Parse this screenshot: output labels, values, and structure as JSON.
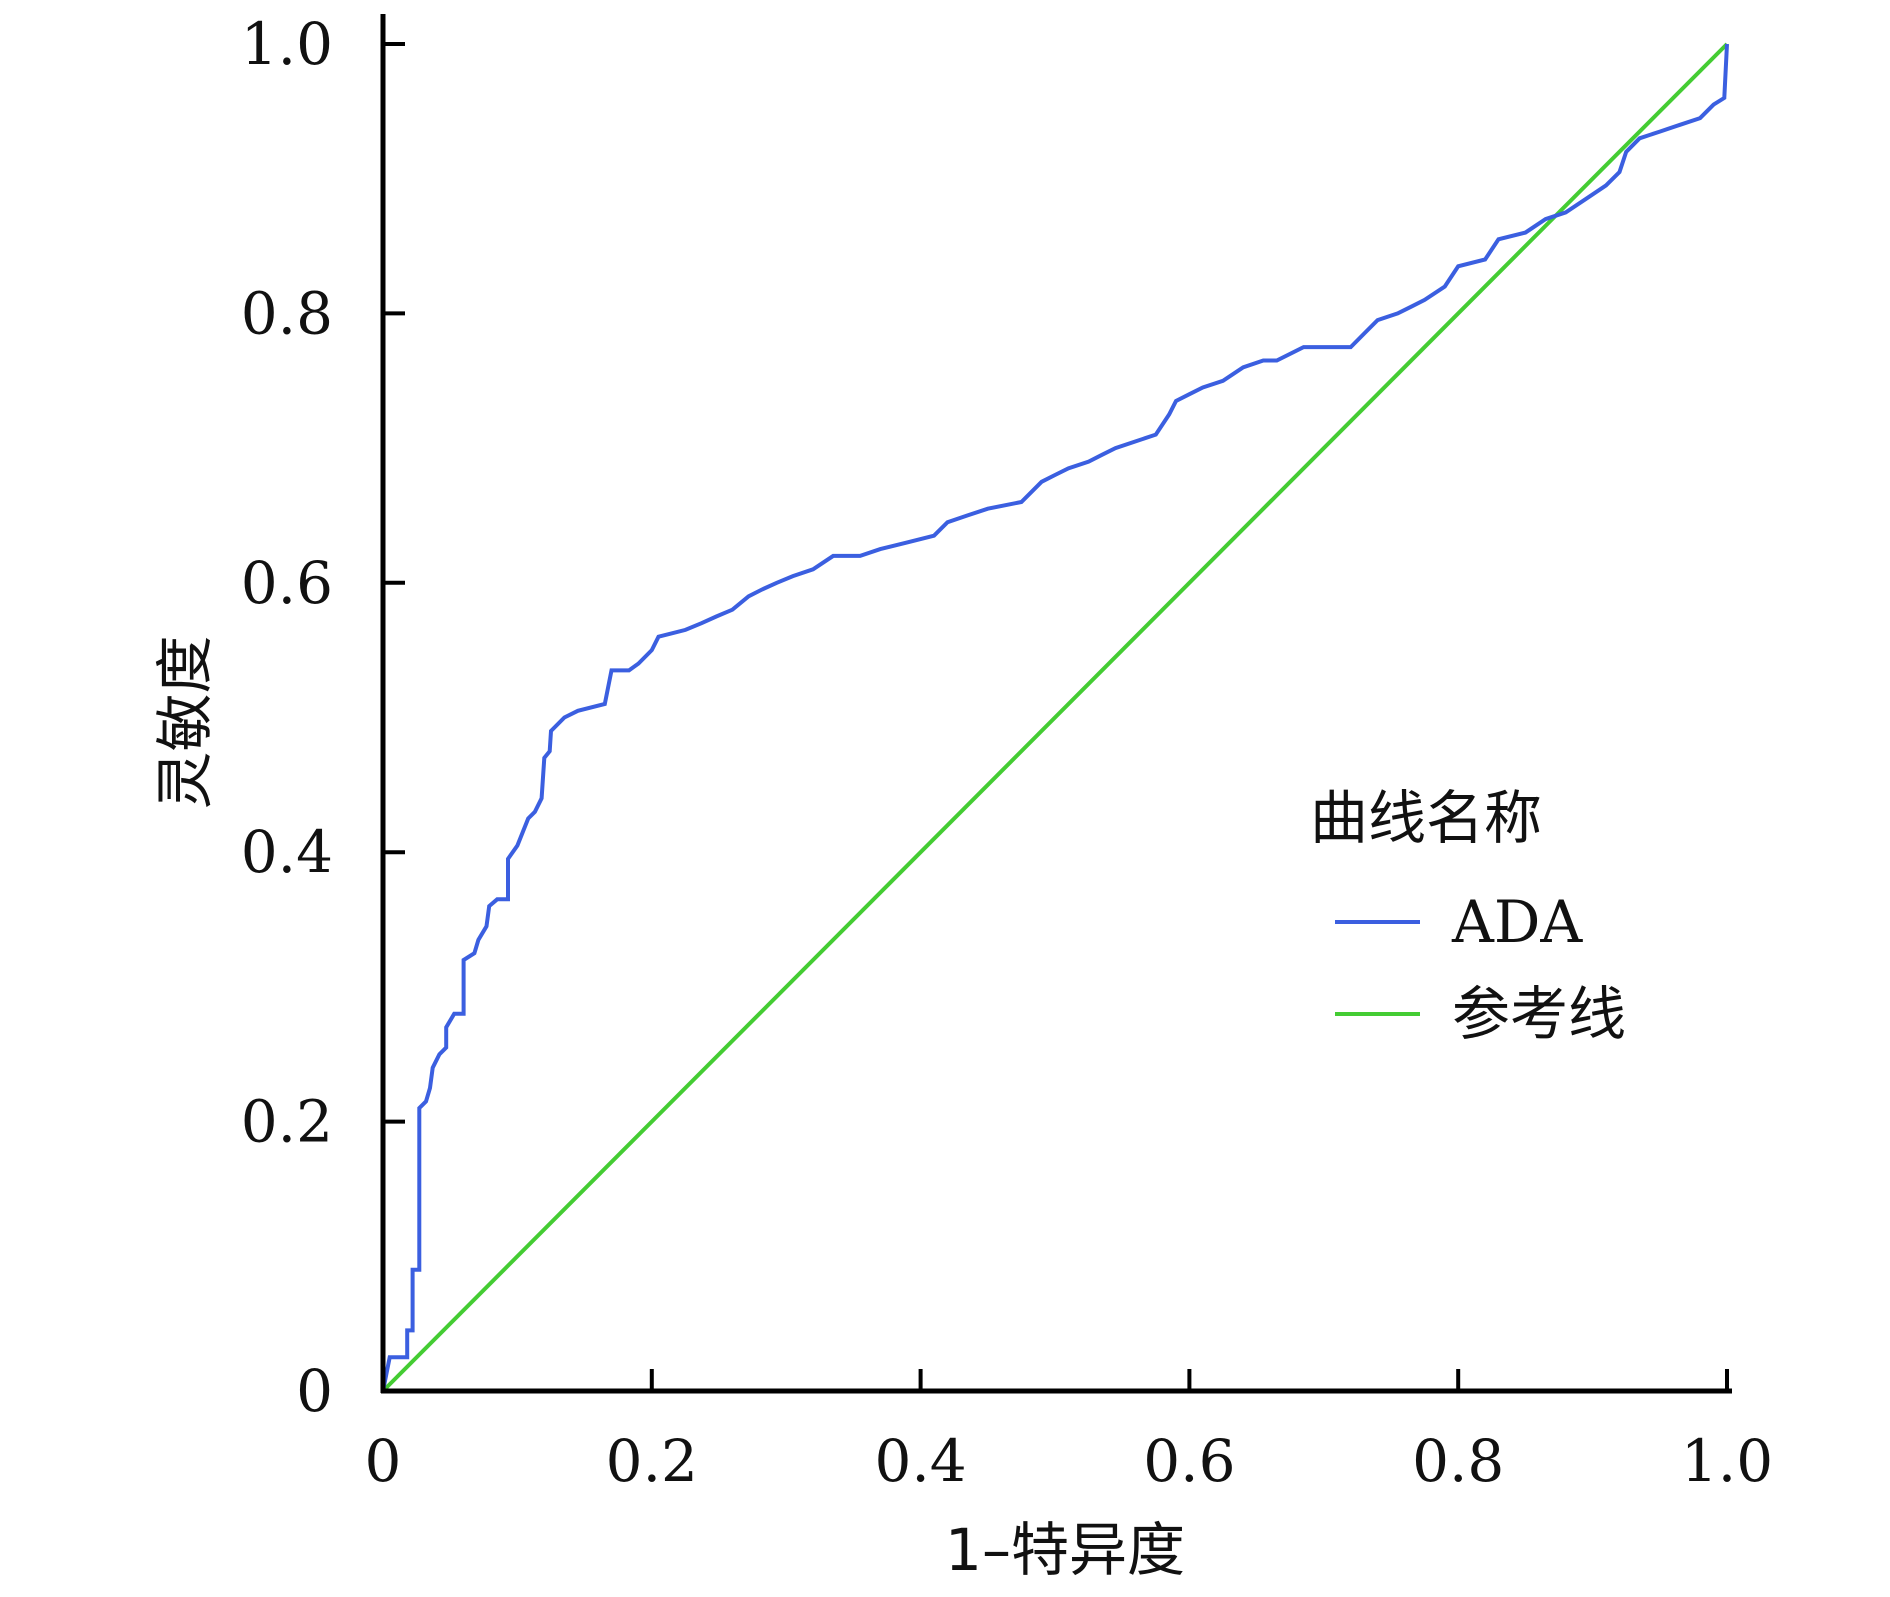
{
  "chart_data": {
    "type": "line",
    "xlabel": "1–特异度",
    "ylabel": "灵敏度",
    "xlim": [
      0,
      1
    ],
    "ylim": [
      0,
      1
    ],
    "x_ticks": [
      "0",
      "0.2",
      "0.4",
      "0.6",
      "0.8",
      "1.0"
    ],
    "y_ticks": [
      "0",
      "0.2",
      "0.4",
      "0.6",
      "0.8",
      "1.0"
    ],
    "grid": false,
    "legend": {
      "title": "曲线名称",
      "placement": "right",
      "entries": [
        {
          "label": "ADA",
          "color": "#3b5fe0"
        },
        {
          "label": "参考线",
          "color": "#44cc33"
        }
      ]
    },
    "series": [
      {
        "name": "ADA",
        "color": "#3b5fe0",
        "points": [
          [
            0,
            0
          ],
          [
            0.003,
            0.015
          ],
          [
            0.005,
            0.025
          ],
          [
            0.018,
            0.025
          ],
          [
            0.018,
            0.045
          ],
          [
            0.022,
            0.045
          ],
          [
            0.022,
            0.09
          ],
          [
            0.027,
            0.09
          ],
          [
            0.027,
            0.21
          ],
          [
            0.032,
            0.215
          ],
          [
            0.035,
            0.225
          ],
          [
            0.037,
            0.24
          ],
          [
            0.042,
            0.25
          ],
          [
            0.047,
            0.255
          ],
          [
            0.047,
            0.27
          ],
          [
            0.053,
            0.28
          ],
          [
            0.06,
            0.28
          ],
          [
            0.06,
            0.32
          ],
          [
            0.068,
            0.325
          ],
          [
            0.071,
            0.335
          ],
          [
            0.077,
            0.345
          ],
          [
            0.079,
            0.36
          ],
          [
            0.085,
            0.365
          ],
          [
            0.093,
            0.365
          ],
          [
            0.093,
            0.395
          ],
          [
            0.1,
            0.405
          ],
          [
            0.104,
            0.415
          ],
          [
            0.108,
            0.425
          ],
          [
            0.113,
            0.43
          ],
          [
            0.118,
            0.44
          ],
          [
            0.12,
            0.47
          ],
          [
            0.124,
            0.475
          ],
          [
            0.125,
            0.49
          ],
          [
            0.135,
            0.5
          ],
          [
            0.145,
            0.505
          ],
          [
            0.165,
            0.51
          ],
          [
            0.17,
            0.535
          ],
          [
            0.183,
            0.535
          ],
          [
            0.19,
            0.54
          ],
          [
            0.2,
            0.55
          ],
          [
            0.205,
            0.56
          ],
          [
            0.225,
            0.565
          ],
          [
            0.237,
            0.57
          ],
          [
            0.248,
            0.575
          ],
          [
            0.26,
            0.58
          ],
          [
            0.272,
            0.59
          ],
          [
            0.282,
            0.595
          ],
          [
            0.293,
            0.6
          ],
          [
            0.305,
            0.605
          ],
          [
            0.32,
            0.61
          ],
          [
            0.335,
            0.62
          ],
          [
            0.355,
            0.62
          ],
          [
            0.37,
            0.625
          ],
          [
            0.39,
            0.63
          ],
          [
            0.41,
            0.635
          ],
          [
            0.42,
            0.645
          ],
          [
            0.435,
            0.65
          ],
          [
            0.45,
            0.655
          ],
          [
            0.475,
            0.66
          ],
          [
            0.49,
            0.675
          ],
          [
            0.5,
            0.68
          ],
          [
            0.51,
            0.685
          ],
          [
            0.525,
            0.69
          ],
          [
            0.535,
            0.695
          ],
          [
            0.545,
            0.7
          ],
          [
            0.56,
            0.705
          ],
          [
            0.575,
            0.71
          ],
          [
            0.585,
            0.725
          ],
          [
            0.59,
            0.735
          ],
          [
            0.6,
            0.74
          ],
          [
            0.61,
            0.745
          ],
          [
            0.625,
            0.75
          ],
          [
            0.64,
            0.76
          ],
          [
            0.655,
            0.765
          ],
          [
            0.665,
            0.765
          ],
          [
            0.685,
            0.775
          ],
          [
            0.72,
            0.775
          ],
          [
            0.73,
            0.785
          ],
          [
            0.74,
            0.795
          ],
          [
            0.755,
            0.8
          ],
          [
            0.765,
            0.805
          ],
          [
            0.775,
            0.81
          ],
          [
            0.79,
            0.82
          ],
          [
            0.8,
            0.835
          ],
          [
            0.82,
            0.84
          ],
          [
            0.83,
            0.855
          ],
          [
            0.85,
            0.86
          ],
          [
            0.865,
            0.87
          ],
          [
            0.88,
            0.875
          ],
          [
            0.895,
            0.885
          ],
          [
            0.91,
            0.895
          ],
          [
            0.92,
            0.905
          ],
          [
            0.925,
            0.92
          ],
          [
            0.935,
            0.93
          ],
          [
            0.95,
            0.935
          ],
          [
            0.965,
            0.94
          ],
          [
            0.98,
            0.945
          ],
          [
            0.99,
            0.955
          ],
          [
            0.998,
            0.96
          ],
          [
            1.0,
            1.0
          ]
        ]
      },
      {
        "name": "参考线",
        "color": "#44cc33",
        "points": [
          [
            0,
            0
          ],
          [
            1,
            1
          ]
        ]
      }
    ]
  }
}
